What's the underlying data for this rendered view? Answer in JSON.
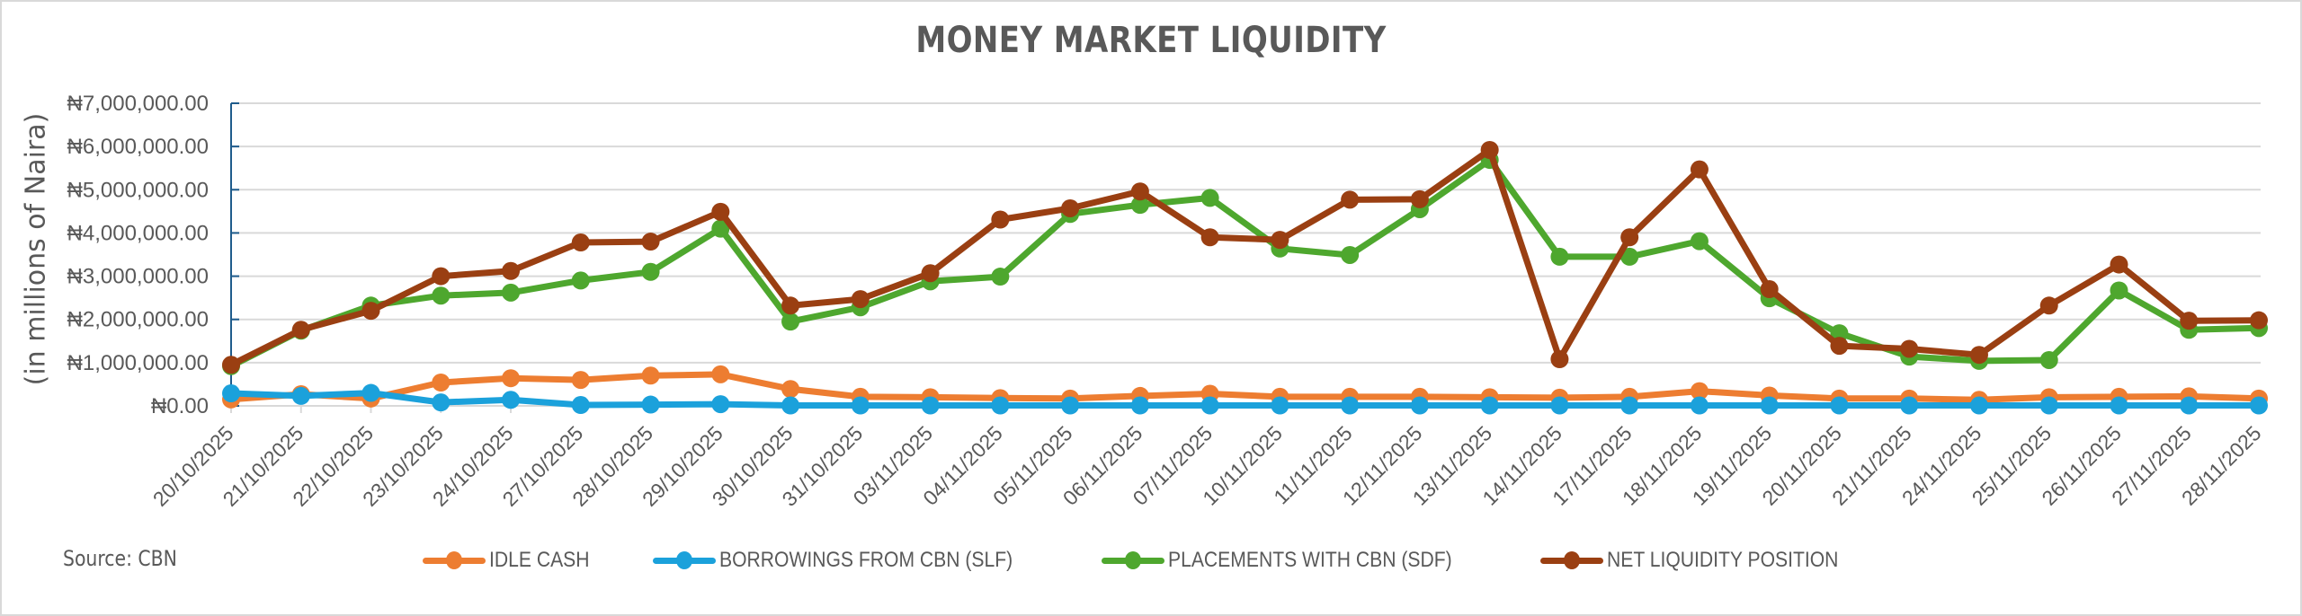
{
  "chart_data": {
    "type": "line",
    "title": "MONEY MARKET LIQUIDITY",
    "xlabel": "",
    "ylabel": "(in millions of Naira)",
    "ylim": [
      0,
      7000000
    ],
    "yticks": [
      0,
      1000000,
      2000000,
      3000000,
      4000000,
      5000000,
      6000000,
      7000000
    ],
    "ytick_labels": [
      "₦0.00",
      "₦1,000,000.00",
      "₦2,000,000.00",
      "₦3,000,000.00",
      "₦4,000,000.00",
      "₦5,000,000.00",
      "₦6,000,000.00",
      "₦7,000,000.00"
    ],
    "grid": true,
    "legend_position": "bottom",
    "categories": [
      "20/10/2025",
      "21/10/2025",
      "22/10/2025",
      "23/10/2025",
      "24/10/2025",
      "27/10/2025",
      "28/10/2025",
      "29/10/2025",
      "30/10/2025",
      "31/10/2025",
      "03/11/2025",
      "04/11/2025",
      "05/11/2025",
      "06/11/2025",
      "07/11/2025",
      "10/11/2025",
      "11/11/2025",
      "12/11/2025",
      "13/11/2025",
      "14/11/2025",
      "17/11/2025",
      "18/11/2025",
      "19/11/2025",
      "20/11/2025",
      "21/11/2025",
      "24/11/2025",
      "25/11/2025",
      "26/11/2025",
      "27/11/2025",
      "28/11/2025"
    ],
    "series": [
      {
        "name": "IDLE CASH",
        "color": "#ED7D31",
        "values": [
          150000,
          270000,
          170000,
          540000,
          640000,
          600000,
          700000,
          730000,
          390000,
          210000,
          200000,
          180000,
          170000,
          230000,
          280000,
          210000,
          210000,
          210000,
          200000,
          190000,
          210000,
          340000,
          240000,
          170000,
          170000,
          140000,
          200000,
          210000,
          220000,
          170000
        ]
      },
      {
        "name": "BORROWINGS FROM CBN (SLF)",
        "color": "#1BA1DB",
        "values": [
          290000,
          230000,
          300000,
          80000,
          140000,
          20000,
          30000,
          40000,
          10000,
          10000,
          10000,
          10000,
          10000,
          10000,
          10000,
          10000,
          10000,
          10000,
          10000,
          10000,
          10000,
          10000,
          10000,
          10000,
          10000,
          10000,
          10000,
          10000,
          10000,
          10000
        ]
      },
      {
        "name": "PLACEMENTS WITH CBN (SDF)",
        "color": "#4EA72E",
        "values": [
          920000,
          1740000,
          2320000,
          2550000,
          2620000,
          2900000,
          3100000,
          4100000,
          1950000,
          2280000,
          2880000,
          2990000,
          4440000,
          4650000,
          4810000,
          3640000,
          3490000,
          4550000,
          5690000,
          3450000,
          3450000,
          3810000,
          2490000,
          1680000,
          1140000,
          1040000,
          1060000,
          2670000,
          1760000,
          1800000
        ]
      },
      {
        "name": "NET LIQUIDITY POSITION",
        "color": "#9A3F12",
        "values": [
          950000,
          1760000,
          2200000,
          3000000,
          3120000,
          3780000,
          3800000,
          4490000,
          2320000,
          2470000,
          3070000,
          4310000,
          4570000,
          4960000,
          3900000,
          3840000,
          4770000,
          4780000,
          5920000,
          1080000,
          3900000,
          5470000,
          2700000,
          1390000,
          1320000,
          1180000,
          2320000,
          3270000,
          1970000,
          1980000
        ]
      }
    ]
  },
  "source": "Source:  CBN",
  "legend": [
    {
      "label": "IDLE CASH",
      "color": "#ED7D31"
    },
    {
      "label": "BORROWINGS FROM CBN (SLF)",
      "color": "#1BA1DB"
    },
    {
      "label": "PLACEMENTS WITH CBN (SDF)",
      "color": "#4EA72E"
    },
    {
      "label": "NET LIQUIDITY POSITION",
      "color": "#9A3F12"
    }
  ]
}
